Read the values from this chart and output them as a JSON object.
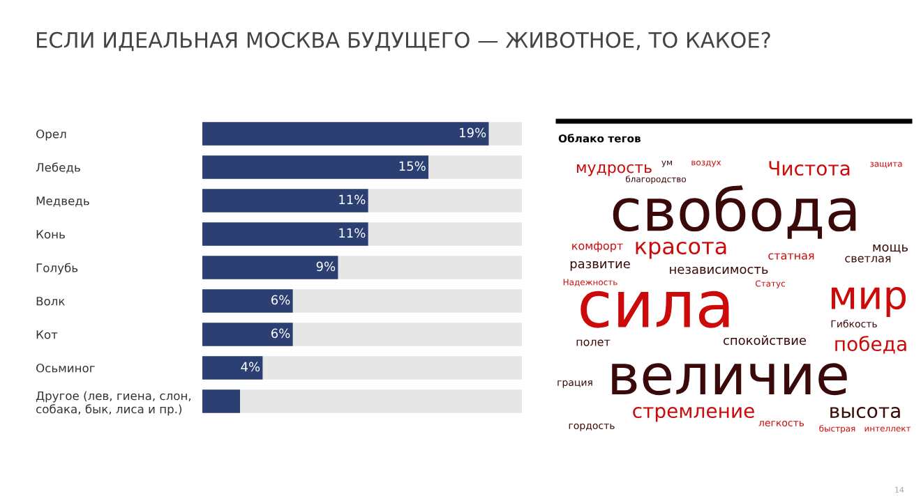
{
  "chart_data": [
    {
      "type": "bar",
      "orientation": "horizontal",
      "title": "ЕСЛИ ИДЕАЛЬНАЯ МОСКВА БУДУЩЕГО — ЖИВОТНОЕ, ТО КАКОЕ?",
      "categories": [
        "Орел",
        "Лебедь",
        "Медведь",
        "Конь",
        "Голубь",
        "Волк",
        "Кот",
        "Осьминог",
        "Другое (лев, гиена, слон,\nсобака, бык, лиса и пр.)"
      ],
      "values": [
        19,
        15,
        11,
        11,
        9,
        6,
        6,
        4,
        2.5
      ],
      "value_labels": [
        "19%",
        "15%",
        "11%",
        "11%",
        "9%",
        "6%",
        "6%",
        "4%",
        null
      ],
      "color": "#2b3f73",
      "xlim": [
        0,
        21.2
      ],
      "tick_labels": "y",
      "grid": false,
      "legend": false
    },
    {
      "type": "other",
      "title": "Облако тегов",
      "annotations": [
        "свобода",
        "сила",
        "величие",
        "мир",
        "красота",
        "Чистота",
        "мудрость",
        "стремление",
        "высота",
        "победа",
        "независимость",
        "развитие",
        "спокойствие",
        "Гибкость",
        "комфорт",
        "мощь",
        "статная",
        "светлая",
        "полет",
        "грация",
        "гордость",
        "легкость",
        "быстрая",
        "интеллект",
        "Надежность",
        "благородство",
        "Статус",
        "защита",
        "воздух",
        "ум",
        "14"
      ]
    }
  ]
}
